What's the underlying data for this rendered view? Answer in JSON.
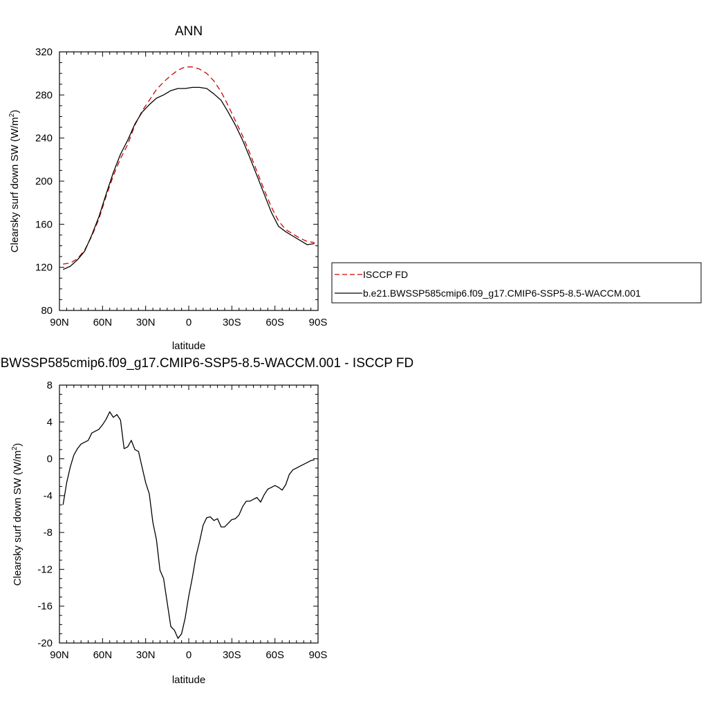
{
  "chart_data": [
    {
      "type": "line",
      "title": "ANN",
      "xlabel": "latitude",
      "ylabel": "Clearsky surf down SW (W/m2)",
      "ylabel_text": "Clearsky surf down SW (W/m",
      "ylabel_sup": "2",
      "ylabel_close": ")",
      "x_reversed": true,
      "xlim": [
        90,
        -90
      ],
      "ylim": [
        80,
        320
      ],
      "x_ticks": [
        90,
        60,
        30,
        0,
        -30,
        -60,
        -90
      ],
      "x_tick_labels": [
        "90N",
        "60N",
        "30N",
        "0",
        "30S",
        "60S",
        "90S"
      ],
      "y_ticks": [
        80,
        120,
        160,
        200,
        240,
        280,
        320
      ],
      "y_tick_labels": [
        "80",
        "120",
        "160",
        "200",
        "240",
        "280",
        "320"
      ],
      "legend": {
        "placement": "right"
      },
      "series": [
        {
          "name": "ISCCP FD",
          "color": "#cc0000",
          "style": "dashed",
          "x": [
            87.5,
            82.5,
            77.5,
            72.5,
            67.5,
            62.5,
            57.5,
            52.5,
            47.5,
            42.5,
            37.5,
            32.5,
            27.5,
            22.5,
            17.5,
            12.5,
            7.5,
            2.5,
            -2.5,
            -7.5,
            -12.5,
            -17.5,
            -22.5,
            -27.5,
            -32.5,
            -37.5,
            -42.5,
            -47.5,
            -52.5,
            -57.5,
            -62.5,
            -67.5,
            -72.5,
            -77.5,
            -82.5,
            -87.5
          ],
          "y": [
            123,
            124,
            128,
            136,
            149,
            165,
            186,
            205,
            221,
            234,
            252,
            265,
            275,
            285,
            292,
            298,
            303,
            306,
            306,
            304,
            300,
            293,
            283,
            270,
            256,
            242,
            226,
            209,
            192,
            176,
            163,
            155,
            151,
            147,
            144,
            143
          ]
        },
        {
          "name": "b.e21.BWSSP585cmip6.f09_g17.CMIP6-SSP5-8.5-WACCM.001",
          "color": "#000000",
          "style": "solid",
          "x": [
            87.5,
            82.5,
            77.5,
            72.5,
            67.5,
            62.5,
            57.5,
            52.5,
            47.5,
            42.5,
            37.5,
            32.5,
            27.5,
            22.5,
            17.5,
            12.5,
            7.5,
            2.5,
            -2.5,
            -7.5,
            -12.5,
            -17.5,
            -22.5,
            -27.5,
            -32.5,
            -37.5,
            -42.5,
            -47.5,
            -52.5,
            -57.5,
            -62.5,
            -67.5,
            -72.5,
            -77.5,
            -82.5,
            -87.5
          ],
          "y": [
            118,
            121,
            127,
            135,
            150,
            167,
            188,
            208,
            225,
            238,
            253,
            264,
            271,
            277,
            280,
            284,
            286,
            286,
            287,
            287,
            286,
            281,
            275,
            264,
            252,
            238,
            222,
            205,
            188,
            171,
            158,
            153,
            149,
            145,
            141,
            142
          ]
        }
      ]
    },
    {
      "type": "line",
      "title": "b.e21.BWSSP585cmip6.f09_g17.CMIP6-SSP5-8.5-WACCM.001 - ISCCP FD",
      "xlabel": "latitude",
      "ylabel": "Clearsky surf down SW (W/m2)",
      "ylabel_text": "Clearsky surf down SW (W/m",
      "ylabel_sup": "2",
      "ylabel_close": ")",
      "x_reversed": true,
      "xlim": [
        90,
        -90
      ],
      "ylim": [
        -20,
        8
      ],
      "x_ticks": [
        90,
        60,
        30,
        0,
        -30,
        -60,
        -90
      ],
      "x_tick_labels": [
        "90N",
        "60N",
        "30N",
        "0",
        "30S",
        "60S",
        "90S"
      ],
      "y_ticks": [
        -20,
        -16,
        -12,
        -8,
        -4,
        0,
        4,
        8
      ],
      "y_tick_labels": [
        "-20",
        "-16",
        "-12",
        "-8",
        "-4",
        "0",
        "4",
        "8"
      ],
      "series": [
        {
          "color": "#000000",
          "style": "solid",
          "x": [
            87.5,
            85,
            82.5,
            80,
            77.5,
            75,
            72.5,
            70,
            67.5,
            65,
            62.5,
            60,
            57.5,
            55,
            52.5,
            50,
            47.5,
            45,
            42.5,
            40,
            37.5,
            35,
            32.5,
            30,
            27.5,
            25,
            22.5,
            20,
            17.5,
            15,
            12.5,
            10,
            7.5,
            5,
            2.5,
            0,
            -2.5,
            -5,
            -7.5,
            -10,
            -12.5,
            -15,
            -17.5,
            -20,
            -22.5,
            -25,
            -27.5,
            -30,
            -32.5,
            -35,
            -37.5,
            -40,
            -42.5,
            -45,
            -47.5,
            -50,
            -52.5,
            -55,
            -57.5,
            -60,
            -62.5,
            -65,
            -67.5,
            -70,
            -72.5,
            -75,
            -77.5,
            -80,
            -82.5,
            -85,
            -87.5
          ],
          "y": [
            -5.0,
            -2.6,
            -0.9,
            0.4,
            1.1,
            1.6,
            1.8,
            2.0,
            2.8,
            3.0,
            3.2,
            3.7,
            4.3,
            5.1,
            4.5,
            4.8,
            4.2,
            1.1,
            1.3,
            2.0,
            1.0,
            0.8,
            -0.9,
            -2.6,
            -3.8,
            -6.9,
            -8.8,
            -12.1,
            -13.0,
            -15.6,
            -18.2,
            -18.6,
            -19.5,
            -19.0,
            -17.3,
            -14.9,
            -12.9,
            -10.6,
            -9.0,
            -7.2,
            -6.4,
            -6.3,
            -6.7,
            -6.5,
            -7.4,
            -7.4,
            -7.0,
            -6.6,
            -6.5,
            -6.1,
            -5.2,
            -4.6,
            -4.6,
            -4.4,
            -4.2,
            -4.7,
            -3.9,
            -3.3,
            -3.1,
            -2.9,
            -3.1,
            -3.4,
            -2.8,
            -1.7,
            -1.2,
            -1.0,
            -0.8,
            -0.6,
            -0.4,
            -0.2,
            -0.1
          ]
        }
      ]
    }
  ]
}
